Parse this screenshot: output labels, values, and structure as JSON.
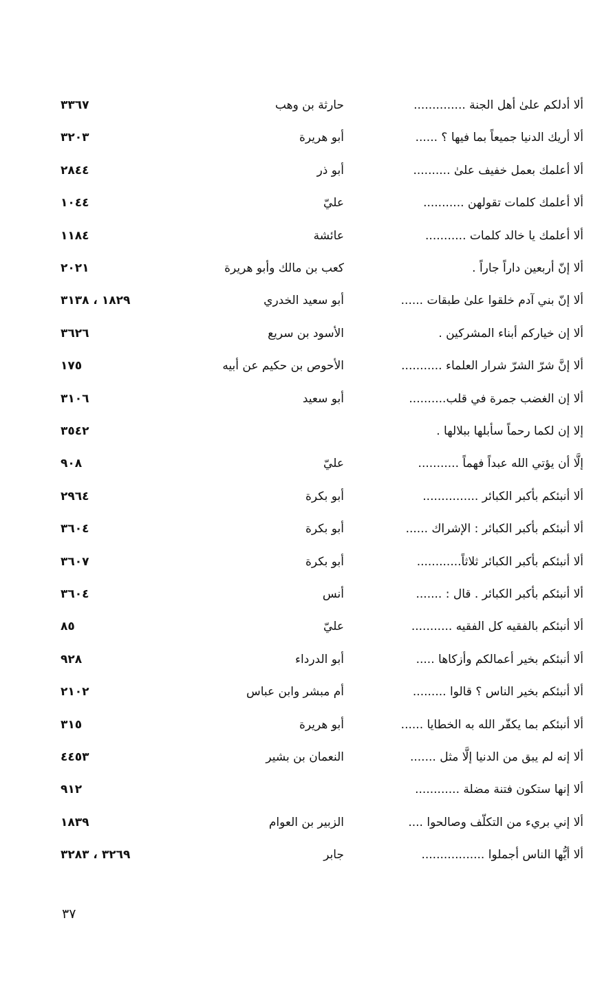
{
  "entries": [
    {
      "hadith": "ألا أدلكم علىٰ أهل الجنة ..............",
      "narrator": "حارثة بن وهب",
      "ref": "٣٣٦٧"
    },
    {
      "hadith": "ألا أريك الدنيا جميعاً بما فيها ؟ ......",
      "narrator": "أبو هريرة",
      "ref": "٣٢٠٣"
    },
    {
      "hadith": "ألا أعلمك بعمل خفيف علىٰ ..........",
      "narrator": "أبو ذر",
      "ref": "٢٨٤٤"
    },
    {
      "hadith": "ألا أعلمك كلمات تقولهن ...........",
      "narrator": "عليّ",
      "ref": "١٠٤٤"
    },
    {
      "hadith": "ألا أعلمك يا خالد كلمات ...........",
      "narrator": "عائشة",
      "ref": "١١٨٤"
    },
    {
      "hadith": "ألا إنّ أربعين داراً جاراً .",
      "narrator": "كعب بن مالك وأبو هريرة",
      "ref": "٢٠٢١"
    },
    {
      "hadith": "ألا إنّ بني آدم خلقوا علىٰ طبقات ......",
      "narrator": "أبو سعيد الخدري",
      "ref": "١٨٢٩ ، ٣١٣٨"
    },
    {
      "hadith": "ألا إن خياركم أبناء المشركين .",
      "narrator": "الأسود بن سريع",
      "ref": "٣٦٢٦"
    },
    {
      "hadith": "ألا إنَّ شرّ الشرّ شرار العلماء ...........",
      "narrator": "الأحوص بن حكيم عن أبيه",
      "ref": "١٧٥"
    },
    {
      "hadith": "ألا إن الغضب جمرة في قلب..........",
      "narrator": "أبو سعيد",
      "ref": "٣١٠٦"
    },
    {
      "hadith": "إلا إن لكما رحماً سأبلها ببلالها .",
      "narrator": "",
      "ref": "٣٥٤٢"
    },
    {
      "hadith": "إلَّا أن يؤتي الله عبداً فهماً ...........",
      "narrator": "عليّ",
      "ref": "٩٠٨"
    },
    {
      "hadith": "ألا أنبئكم بأكبر الكبائر ...............",
      "narrator": "أبو بكرة",
      "ref": "٢٩٦٤"
    },
    {
      "hadith": "ألا أنبئكم بأكبر الكبائر : الإشراك ......",
      "narrator": "أبو بكرة",
      "ref": "٣٦٠٤"
    },
    {
      "hadith": "ألا أنبئكم بأكبر الكبائر ثلاثاً............",
      "narrator": "أبو بكرة",
      "ref": "٣٦٠٧"
    },
    {
      "hadith": "ألا أنبئكم بأكبر الكبائر . قال : .......",
      "narrator": "أنس",
      "ref": "٣٦٠٤"
    },
    {
      "hadith": "ألا أنبئكم بالفقيه كل الفقيه ...........",
      "narrator": "عليّ",
      "ref": "٨٥"
    },
    {
      "hadith": "ألا أنبئكم بخير أعمالكم وأزكاها .....",
      "narrator": "أبو الدرداء",
      "ref": "٩٢٨"
    },
    {
      "hadith": "ألا أنبئكم بخير الناس ؟ قالوا .........",
      "narrator": "أم مبشر وابن عباس",
      "ref": "٢١٠٢"
    },
    {
      "hadith": "ألا أنبئكم بما يكفّر الله به الخطايا ......",
      "narrator": "أبو هريرة",
      "ref": "٣١٥"
    },
    {
      "hadith": "ألا إنه لم يبق من الدنيا إلَّا مثل .......",
      "narrator": "النعمان بن بشير",
      "ref": "٤٤٥٣"
    },
    {
      "hadith": "ألا إنها ستكون فتنة مضلة ............",
      "narrator": "",
      "ref": "٩١٢"
    },
    {
      "hadith": "ألا إني بريء من التكلّف وصالحوا ....",
      "narrator": "الزبير بن العوام",
      "ref": "١٨٣٩"
    },
    {
      "hadith": "ألا أيُّها الناس أجملوا .................",
      "narrator": "جابر",
      "ref": "٣٢٦٩ ، ٣٢٨٣"
    }
  ],
  "page_number": "٣٧"
}
